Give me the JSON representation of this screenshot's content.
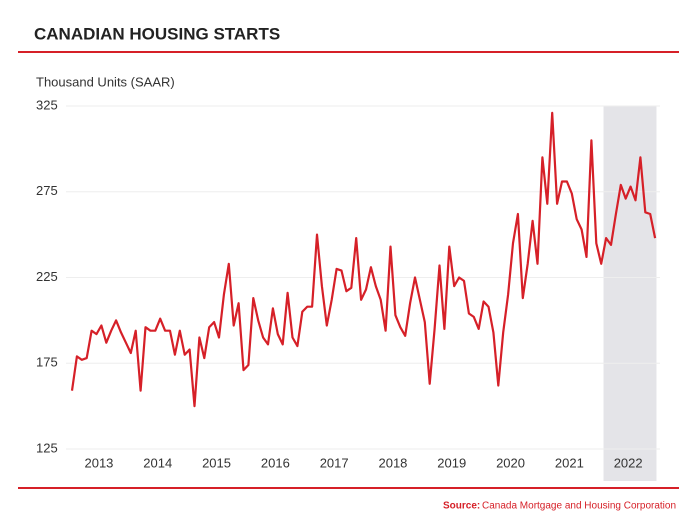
{
  "chart_data": {
    "type": "line",
    "title": "CANADIAN HOUSING STARTS",
    "y_label": "Thousand Units (SAAR)",
    "source_label": "Source:",
    "source": "Canada Mortgage and Housing Corporation",
    "categories": [
      null,
      null,
      null,
      null,
      null,
      null,
      "2013",
      null,
      null,
      null,
      null,
      null,
      null,
      null,
      null,
      null,
      null,
      null,
      "2014",
      null,
      null,
      null,
      null,
      null,
      null,
      null,
      null,
      null,
      null,
      null,
      "2015",
      null,
      null,
      null,
      null,
      null,
      null,
      null,
      null,
      null,
      null,
      null,
      "2016",
      null,
      null,
      null,
      null,
      null,
      null,
      null,
      null,
      null,
      null,
      null,
      "2017",
      null,
      null,
      null,
      null,
      null,
      null,
      null,
      null,
      null,
      null,
      null,
      "2018",
      null,
      null,
      null,
      null,
      null,
      null,
      null,
      null,
      null,
      null,
      null,
      "2019",
      null,
      null,
      null,
      null,
      null,
      null,
      null,
      null,
      null,
      null,
      null,
      "2020",
      null,
      null,
      null,
      null,
      null,
      null,
      null,
      null,
      null,
      null,
      null,
      "2021",
      null,
      null,
      null,
      null,
      null,
      null,
      null,
      null,
      null,
      null,
      null,
      "2022",
      null,
      null,
      null,
      null,
      null
    ],
    "series": [
      {
        "color": "#d62028",
        "values": [
          159,
          179,
          177,
          178,
          194,
          192,
          197,
          187,
          194,
          200,
          193,
          187,
          181,
          194,
          159,
          196,
          194,
          194,
          201,
          194,
          194,
          180,
          194,
          180,
          183,
          150,
          190,
          178,
          196,
          199,
          190,
          215,
          233,
          197,
          210,
          171,
          174,
          213,
          200,
          190,
          186,
          207,
          192,
          186,
          216,
          190,
          185,
          205,
          208,
          208,
          250,
          220,
          197,
          212,
          230,
          229,
          217,
          219,
          248,
          212,
          218,
          231,
          220,
          212,
          194,
          243,
          203,
          196,
          191,
          210,
          225,
          212,
          199,
          163,
          195,
          232,
          195,
          243,
          220,
          225,
          223,
          204,
          202,
          195,
          211,
          208,
          193,
          162,
          193,
          215,
          245,
          262,
          213,
          233,
          258,
          233,
          295,
          268,
          321,
          268,
          281,
          281,
          274,
          259,
          253,
          237,
          305,
          245,
          233,
          248,
          244,
          262,
          279,
          271,
          278,
          270,
          295,
          263,
          262,
          248
        ]
      }
    ],
    "ylim": [
      125,
      325
    ],
    "yticks": [
      125,
      175,
      225,
      275,
      325
    ],
    "grid": true
  }
}
